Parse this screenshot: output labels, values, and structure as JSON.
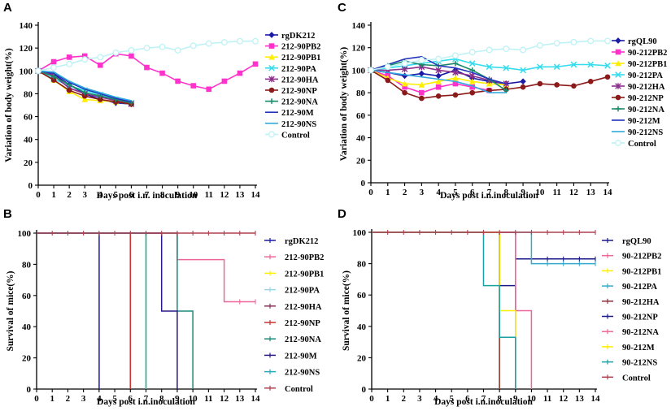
{
  "chart_data": [
    {
      "id": "A",
      "type": "line",
      "panel_label": "A",
      "xlabel": "Days post i.n. inoculation",
      "ylabel": "Variation  of body weight(%)",
      "xlim": [
        0,
        14
      ],
      "ylim": [
        0,
        140
      ],
      "yticks": [
        0,
        20,
        40,
        60,
        80,
        100,
        120,
        140
      ],
      "xticks": [
        0,
        1,
        2,
        3,
        4,
        5,
        6,
        7,
        8,
        9,
        10,
        11,
        12,
        13,
        14
      ],
      "series": [
        {
          "name": "rgDK212",
          "color": "#1a1aa6",
          "marker": "diamond",
          "x": [
            0,
            1,
            2,
            3,
            4,
            5,
            6
          ],
          "values": [
            100,
            97,
            88,
            80,
            75,
            72,
            71
          ]
        },
        {
          "name": "212-90PB2",
          "color": "#ff33cc",
          "marker": "square",
          "x": [
            0,
            1,
            2,
            3,
            4,
            5,
            6,
            7,
            8,
            9,
            10,
            11,
            12,
            13,
            14
          ],
          "values": [
            100,
            108,
            112,
            113,
            105,
            115,
            113,
            103,
            98,
            91,
            87,
            84,
            91,
            98,
            106
          ]
        },
        {
          "name": "212-90PB1",
          "color": "#ffee00",
          "marker": "triangle",
          "x": [
            0,
            1,
            2,
            3,
            4,
            5,
            6
          ],
          "values": [
            100,
            92,
            82,
            75,
            74,
            73,
            71
          ]
        },
        {
          "name": "212-90PA",
          "color": "#33ddee",
          "marker": "x",
          "x": [
            0,
            1,
            2,
            3,
            4,
            5,
            6
          ],
          "values": [
            100,
            93,
            87,
            83,
            79,
            75,
            72
          ]
        },
        {
          "name": "212-90HA",
          "color": "#8b2f8b",
          "marker": "star",
          "x": [
            0,
            1,
            2,
            3,
            4,
            5,
            6
          ],
          "values": [
            100,
            96,
            85,
            80,
            77,
            74,
            71
          ]
        },
        {
          "name": "212-90NP",
          "color": "#8b1a1a",
          "marker": "circle",
          "x": [
            0,
            1,
            2,
            3,
            4,
            5,
            6
          ],
          "values": [
            100,
            92,
            83,
            78,
            75,
            73,
            71
          ]
        },
        {
          "name": "212-90NA",
          "color": "#1a8a6a",
          "marker": "plus",
          "x": [
            0,
            1,
            2,
            3,
            4,
            5,
            6
          ],
          "values": [
            100,
            95,
            88,
            81,
            78,
            75,
            72
          ]
        },
        {
          "name": "212-90M",
          "color": "#2233bb",
          "marker": "none",
          "x": [
            0,
            1,
            2,
            3,
            4,
            5,
            6
          ],
          "values": [
            100,
            98,
            90,
            84,
            80,
            76,
            73
          ]
        },
        {
          "name": "212-90NS",
          "color": "#33aadd",
          "marker": "none",
          "x": [
            0,
            1,
            2,
            3,
            4,
            5,
            6
          ],
          "values": [
            100,
            99,
            91,
            85,
            81,
            77,
            74
          ]
        },
        {
          "name": "Control",
          "color": "#bff2f5",
          "marker": "circle-open",
          "x": [
            0,
            1,
            2,
            3,
            4,
            5,
            6,
            7,
            8,
            9,
            10,
            11,
            12,
            13,
            14
          ],
          "values": [
            100,
            103,
            106,
            110,
            112,
            116,
            118,
            120,
            121,
            118,
            122,
            124,
            125,
            126,
            126
          ]
        }
      ]
    },
    {
      "id": "C",
      "type": "line",
      "panel_label": "C",
      "xlabel": "Days post i.n.inoculation",
      "ylabel": "Variation  of body weight(%)",
      "xlim": [
        0,
        14
      ],
      "ylim": [
        0,
        140
      ],
      "yticks": [
        0,
        20,
        40,
        60,
        80,
        100,
        120,
        140
      ],
      "xticks": [
        0,
        1,
        2,
        3,
        4,
        5,
        6,
        7,
        8,
        9,
        10,
        11,
        12,
        13,
        14
      ],
      "series": [
        {
          "name": "rgQL90",
          "color": "#1a1aa6",
          "marker": "diamond",
          "x": [
            0,
            1,
            2,
            3,
            4,
            5,
            6,
            7,
            8,
            9
          ],
          "values": [
            100,
            98,
            95,
            97,
            95,
            100,
            93,
            90,
            88,
            90
          ]
        },
        {
          "name": "90-212PB2",
          "color": "#ff33cc",
          "marker": "square",
          "x": [
            0,
            1,
            2,
            3,
            4,
            5,
            6,
            7
          ],
          "values": [
            100,
            95,
            85,
            80,
            85,
            88,
            85,
            82
          ]
        },
        {
          "name": "90-212PB1",
          "color": "#ffee00",
          "marker": "triangle",
          "x": [
            0,
            1,
            2,
            3,
            4,
            5,
            6,
            7,
            8
          ],
          "values": [
            100,
            93,
            88,
            87,
            90,
            93,
            90,
            88,
            87
          ]
        },
        {
          "name": "90-212PA",
          "color": "#33ddee",
          "marker": "x",
          "x": [
            0,
            1,
            2,
            3,
            4,
            5,
            6,
            7,
            8,
            9,
            10,
            11,
            12,
            13,
            14
          ],
          "values": [
            100,
            102,
            104,
            106,
            108,
            110,
            106,
            103,
            102,
            100,
            103,
            103,
            105,
            105,
            104
          ]
        },
        {
          "name": "90-212HA",
          "color": "#8b2f8b",
          "marker": "star",
          "x": [
            0,
            1,
            2,
            3,
            4,
            5,
            6,
            7,
            8
          ],
          "values": [
            100,
            100,
            101,
            103,
            100,
            98,
            95,
            91,
            88
          ]
        },
        {
          "name": "90-212NP",
          "color": "#8b1a1a",
          "marker": "circle",
          "x": [
            0,
            1,
            2,
            3,
            4,
            5,
            6,
            7,
            8,
            9,
            10,
            11,
            12,
            13,
            14
          ],
          "values": [
            100,
            91,
            80,
            75,
            77,
            78,
            80,
            82,
            83,
            85,
            88,
            87,
            86,
            90,
            94
          ]
        },
        {
          "name": "90-212NA",
          "color": "#1a8a6a",
          "marker": "plus",
          "x": [
            0,
            1,
            2,
            3,
            4,
            5,
            6,
            7,
            8
          ],
          "values": [
            100,
            104,
            108,
            105,
            104,
            106,
            100,
            92,
            82
          ]
        },
        {
          "name": "90-212M",
          "color": "#2233bb",
          "marker": "none",
          "x": [
            0,
            1,
            2,
            3,
            4,
            5,
            6,
            7,
            8
          ],
          "values": [
            100,
            105,
            110,
            112,
            104,
            102,
            98,
            92,
            88
          ]
        },
        {
          "name": "90-212NS",
          "color": "#33aadd",
          "marker": "none",
          "x": [
            0,
            1,
            2,
            3,
            4,
            5,
            6,
            7,
            8
          ],
          "values": [
            100,
            98,
            96,
            94,
            92,
            90,
            86,
            80,
            80
          ]
        },
        {
          "name": "Control",
          "color": "#bff2f5",
          "marker": "circle-open",
          "x": [
            0,
            1,
            2,
            3,
            4,
            5,
            6,
            7,
            8,
            9,
            10,
            11,
            12,
            13,
            14
          ],
          "values": [
            100,
            103,
            106,
            109,
            110,
            113,
            116,
            118,
            119,
            118,
            122,
            124,
            125,
            126,
            126
          ]
        }
      ]
    },
    {
      "id": "B",
      "type": "line",
      "panel_label": "B",
      "xlabel": "Days post i.n.inoculation",
      "ylabel": "Survival of mice(%)",
      "xlim": [
        0,
        14
      ],
      "ylim": [
        0,
        100
      ],
      "yticks": [
        0,
        20,
        40,
        60,
        80,
        100
      ],
      "xticks": [
        0,
        1,
        2,
        3,
        4,
        5,
        6,
        7,
        8,
        9,
        10,
        11,
        12,
        13,
        14
      ],
      "series": [
        {
          "name": "rgDK212",
          "color": "#1a1aa6",
          "x": [
            0,
            4,
            4
          ],
          "values": [
            100,
            100,
            0
          ]
        },
        {
          "name": "212-90PB2",
          "color": "#ee6699",
          "x": [
            0,
            9,
            9,
            12,
            12,
            14
          ],
          "values": [
            100,
            100,
            83,
            83,
            56,
            56
          ]
        },
        {
          "name": "212-90PB1",
          "color": "#ffee00",
          "x": [
            0,
            7,
            7
          ],
          "values": [
            100,
            100,
            0
          ]
        },
        {
          "name": "212-90PA",
          "color": "#99d6e6",
          "x": [
            0,
            7,
            7
          ],
          "values": [
            100,
            100,
            0
          ]
        },
        {
          "name": "212-90HA",
          "color": "#8b2f5a",
          "x": [
            0,
            6,
            6
          ],
          "values": [
            100,
            100,
            0
          ]
        },
        {
          "name": "212-90NP",
          "color": "#cc3333",
          "x": [
            0,
            6,
            6
          ],
          "values": [
            100,
            100,
            0
          ]
        },
        {
          "name": "212-90NA",
          "color": "#1a8a7a",
          "x": [
            0,
            9,
            9,
            10,
            10
          ],
          "values": [
            100,
            100,
            50,
            50,
            0
          ]
        },
        {
          "name": "212-90M",
          "color": "#2a1a88",
          "x": [
            0,
            8,
            8,
            9,
            9
          ],
          "values": [
            100,
            100,
            50,
            50,
            0
          ]
        },
        {
          "name": "212-90NS",
          "color": "#22aabb",
          "x": [
            0,
            7,
            7
          ],
          "values": [
            100,
            100,
            0
          ]
        },
        {
          "name": "Control",
          "color": "#b04050",
          "x": [
            0,
            14
          ],
          "values": [
            100,
            100
          ]
        }
      ]
    },
    {
      "id": "D",
      "type": "line",
      "panel_label": "D",
      "xlabel": "Days post i.n.inoculation",
      "ylabel": "Survival of mice(%)",
      "xlim": [
        0,
        14
      ],
      "ylim": [
        0,
        100
      ],
      "yticks": [
        0,
        20,
        40,
        60,
        80,
        100
      ],
      "xticks": [
        0,
        1,
        2,
        3,
        4,
        5,
        6,
        7,
        8,
        9,
        10,
        11,
        12,
        13,
        14
      ],
      "series": [
        {
          "name": "rgQL90",
          "color": "#1a1a88",
          "x": [
            0,
            9,
            9,
            14
          ],
          "values": [
            100,
            100,
            83,
            83
          ]
        },
        {
          "name": "90-212PB2",
          "color": "#ee6699",
          "x": [
            0,
            9,
            9,
            10,
            10
          ],
          "values": [
            100,
            100,
            50,
            50,
            0
          ]
        },
        {
          "name": "90-212PB1",
          "color": "#ffee00",
          "x": [
            0,
            8,
            8
          ],
          "values": [
            100,
            100,
            0
          ]
        },
        {
          "name": "90-212PA",
          "color": "#33aacc",
          "x": [
            0,
            10,
            10,
            14
          ],
          "values": [
            100,
            100,
            80,
            80
          ]
        },
        {
          "name": "90-212HA",
          "color": "#8b2f3a",
          "x": [
            0,
            8,
            8
          ],
          "values": [
            100,
            100,
            0
          ]
        },
        {
          "name": "90-212NP",
          "color": "#1a1a88",
          "x": [
            0,
            8,
            8,
            9,
            9
          ],
          "values": [
            100,
            100,
            66,
            66,
            0
          ]
        },
        {
          "name": "90-212NA",
          "color": "#ee6699",
          "x": [
            0,
            9,
            9
          ],
          "values": [
            100,
            100,
            0
          ]
        },
        {
          "name": "90-212M",
          "color": "#ffee00",
          "x": [
            0,
            8,
            8,
            9,
            9
          ],
          "values": [
            100,
            100,
            50,
            50,
            0
          ]
        },
        {
          "name": "90-212NS",
          "color": "#1aa0a0",
          "x": [
            0,
            7,
            7,
            8,
            8,
            9,
            9
          ],
          "values": [
            100,
            100,
            66,
            66,
            33,
            33,
            0
          ]
        },
        {
          "name": "Control",
          "color": "#b04050",
          "x": [
            0,
            14
          ],
          "values": [
            100,
            100
          ]
        }
      ]
    }
  ]
}
